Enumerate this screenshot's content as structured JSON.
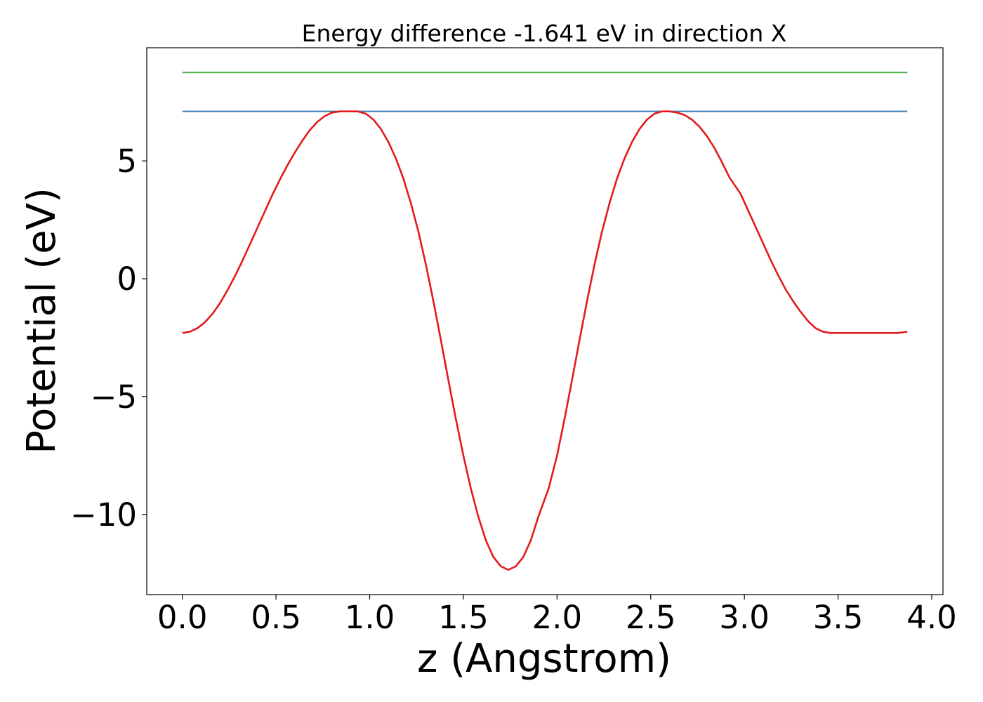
{
  "chart_data": {
    "type": "line",
    "title": "Energy difference -1.641 eV in direction X",
    "xlabel": "z (Angstrom)",
    "ylabel": "Potential (eV)",
    "xlim": [
      -0.19,
      4.06
    ],
    "ylim": [
      -13.4,
      9.8
    ],
    "xticks": [
      0.0,
      0.5,
      1.0,
      1.5,
      2.0,
      2.5,
      3.0,
      3.5,
      4.0
    ],
    "xtick_labels": [
      "0.0",
      "0.5",
      "1.0",
      "1.5",
      "2.0",
      "2.5",
      "3.0",
      "3.5",
      "4.0"
    ],
    "yticks": [
      5,
      0,
      -5,
      -10
    ],
    "ytick_labels": [
      "5",
      "0",
      "−5",
      "−10"
    ],
    "grid": false,
    "colors": {
      "potential": "#e41a1c",
      "upper_level": "#4daf4a",
      "lower_level": "#377eb8"
    },
    "series": [
      {
        "key": "upper_level",
        "x": [
          0.0,
          3.87
        ],
        "y": [
          8.75,
          8.75
        ]
      },
      {
        "key": "lower_level",
        "x": [
          0.0,
          3.87
        ],
        "y": [
          7.1,
          7.1
        ]
      },
      {
        "key": "potential",
        "x": [
          0.0,
          0.04,
          0.08,
          0.12,
          0.16,
          0.2,
          0.24,
          0.28,
          0.32,
          0.36,
          0.4,
          0.44,
          0.48,
          0.52,
          0.56,
          0.6,
          0.64,
          0.68,
          0.72,
          0.76,
          0.8,
          0.84,
          0.88,
          0.935,
          0.98,
          1.02,
          1.06,
          1.1,
          1.14,
          1.18,
          1.22,
          1.26,
          1.3,
          1.34,
          1.38,
          1.42,
          1.46,
          1.5,
          1.54,
          1.58,
          1.62,
          1.66,
          1.7,
          1.74,
          1.78,
          1.82,
          1.86,
          1.9,
          1.955,
          2.0,
          2.04,
          2.08,
          2.12,
          2.16,
          2.2,
          2.24,
          2.28,
          2.32,
          2.36,
          2.4,
          2.44,
          2.48,
          2.52,
          2.56,
          2.6,
          2.64,
          2.68,
          2.72,
          2.76,
          2.8,
          2.84,
          2.88,
          2.92,
          2.98,
          3.02,
          3.06,
          3.1,
          3.14,
          3.18,
          3.22,
          3.26,
          3.3,
          3.34,
          3.38,
          3.42,
          3.46,
          3.5,
          3.54,
          3.58,
          3.62,
          3.66,
          3.7,
          3.74,
          3.78,
          3.82,
          3.87
        ],
        "y": [
          -2.3,
          -2.25,
          -2.1,
          -1.85,
          -1.5,
          -1.05,
          -0.5,
          0.1,
          0.75,
          1.45,
          2.15,
          2.85,
          3.55,
          4.2,
          4.8,
          5.35,
          5.85,
          6.3,
          6.65,
          6.9,
          7.05,
          7.1,
          7.1,
          7.1,
          7.0,
          6.75,
          6.35,
          5.8,
          5.1,
          4.25,
          3.2,
          2.0,
          0.6,
          -0.95,
          -2.6,
          -4.3,
          -5.95,
          -7.5,
          -8.9,
          -10.1,
          -11.1,
          -11.8,
          -12.2,
          -12.35,
          -12.2,
          -11.8,
          -11.1,
          -10.1,
          -8.9,
          -7.5,
          -5.95,
          -4.3,
          -2.6,
          -0.95,
          0.6,
          2.0,
          3.2,
          4.25,
          5.1,
          5.8,
          6.35,
          6.75,
          7.0,
          7.1,
          7.1,
          7.05,
          6.95,
          6.75,
          6.45,
          6.05,
          5.55,
          4.95,
          4.3,
          3.6,
          2.9,
          2.2,
          1.5,
          0.8,
          0.15,
          -0.45,
          -0.95,
          -1.4,
          -1.8,
          -2.1,
          -2.25,
          -2.3,
          -2.3,
          -2.3,
          -2.3,
          -2.3,
          -2.3,
          -2.3,
          -2.3,
          -2.3,
          -2.3,
          -2.25
        ]
      }
    ]
  }
}
